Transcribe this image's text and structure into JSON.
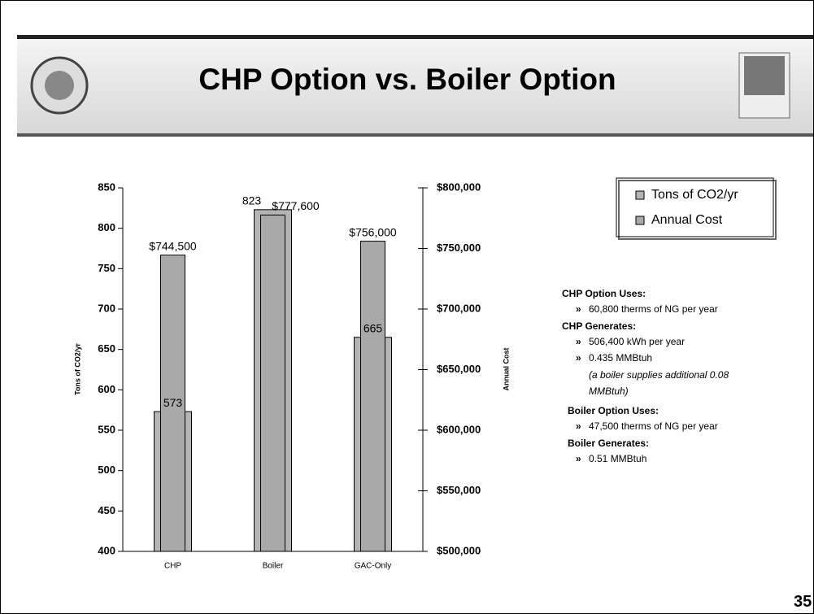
{
  "slide": {
    "title": "CHP Option vs. Boiler Option",
    "page_number": 35
  },
  "chart_data": {
    "type": "bar",
    "categories": [
      "CHP",
      "Boiler",
      "GAC-Only"
    ],
    "series": [
      {
        "name": "Tons of CO2/yr",
        "color": "#b4b4b4",
        "values": [
          573,
          823,
          665
        ]
      },
      {
        "name": "Annual Cost",
        "color": "#a9a9a9",
        "axis": "y2",
        "values": [
          744500,
          777600,
          756000
        ],
        "value_labels": [
          "$744,500",
          "$777,600",
          "$756,000"
        ]
      }
    ],
    "ylabel": "Tons of CO2/yr",
    "y2label": "Annual Cost",
    "ylim": [
      400,
      850
    ],
    "yticks": [
      400,
      450,
      500,
      550,
      600,
      650,
      700,
      750,
      800,
      850
    ],
    "y2lim": [
      500000,
      800000
    ],
    "y2ticks": [
      {
        "value": 500000,
        "label": "$500,000"
      },
      {
        "value": 550000,
        "label": "$550,000"
      },
      {
        "value": 600000,
        "label": "$600,000"
      },
      {
        "value": 650000,
        "label": "$650,000"
      },
      {
        "value": 700000,
        "label": "$700,000"
      },
      {
        "value": 750000,
        "label": "$750,000"
      },
      {
        "value": 800000,
        "label": "$800,000"
      }
    ],
    "legend": "top-right"
  },
  "notes": [
    {
      "heading": "CHP Option Uses:",
      "items": [
        "60,800 therms of NG per year"
      ]
    },
    {
      "heading": "CHP Generates:",
      "items": [
        "506,400 kWh per year",
        "0.435 MMBtuh"
      ],
      "remark": "(a boiler supplies additional 0.08 MMBtuh)"
    },
    {
      "heading": "Boiler Option Uses:",
      "items": [
        "47,500 therms of NG per year"
      ]
    },
    {
      "heading": "Boiler Generates:",
      "items": [
        "0.51 MMBtuh"
      ]
    }
  ]
}
